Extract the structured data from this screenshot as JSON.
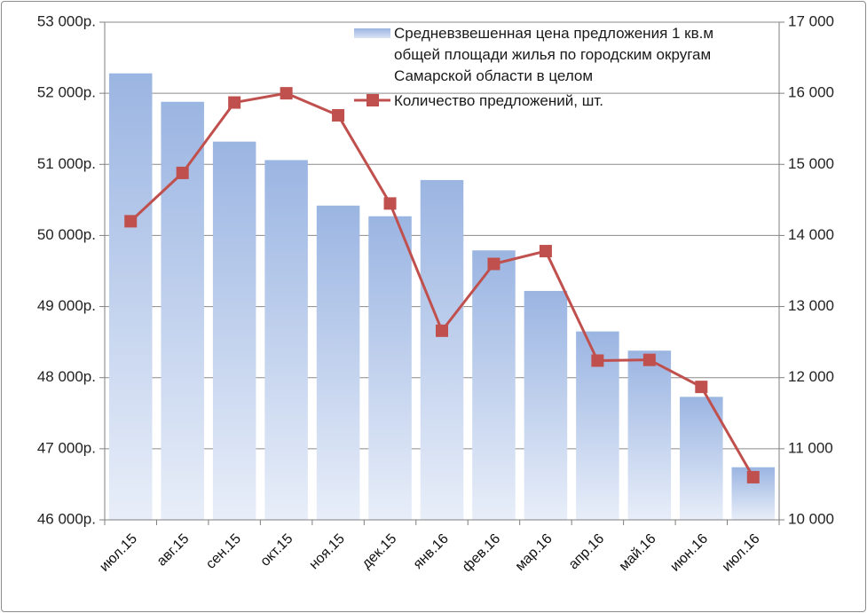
{
  "chart_data": {
    "type": "bar+line",
    "categories": [
      "июл.15",
      "авг.15",
      "сен.15",
      "окт.15",
      "ноя.15",
      "дек.15",
      "янв.16",
      "фев.16",
      "мар.16",
      "апр.16",
      "май.16",
      "июн.16",
      "июл.16"
    ],
    "series": [
      {
        "name_lines": [
          "Средневзвешенная цена предложения 1 кв.м",
          "общей площади жилья по городским округам",
          "Самарской области в целом"
        ],
        "type": "bar",
        "axis": "left",
        "color": "#9db7e3",
        "values": [
          52280,
          51880,
          51320,
          51060,
          50420,
          50270,
          50780,
          49790,
          49220,
          48650,
          48380,
          47730,
          46740
        ]
      },
      {
        "name": "Количество предложений, шт.",
        "type": "line",
        "axis": "right",
        "color": "#c0504d",
        "values": [
          14200,
          14880,
          15870,
          16000,
          15690,
          14450,
          12660,
          13600,
          13780,
          12240,
          12250,
          11870,
          10600
        ]
      }
    ],
    "left_axis": {
      "ylim": [
        46000,
        53000
      ],
      "ticks": [
        46000,
        47000,
        48000,
        49000,
        50000,
        51000,
        52000,
        53000
      ],
      "tick_labels": [
        "46 000р.",
        "47 000р.",
        "48 000р.",
        "49 000р.",
        "50 000р.",
        "51 000р.",
        "52 000р.",
        "53 000р."
      ]
    },
    "right_axis": {
      "ylim": [
        10000,
        17000
      ],
      "ticks": [
        10000,
        11000,
        12000,
        13000,
        14000,
        15000,
        16000,
        17000
      ],
      "tick_labels": [
        "10 000",
        "11 000",
        "12 000",
        "13 000",
        "14 000",
        "15 000",
        "16 000",
        "17 000"
      ]
    },
    "grid": true,
    "legend_position": "top-right"
  }
}
